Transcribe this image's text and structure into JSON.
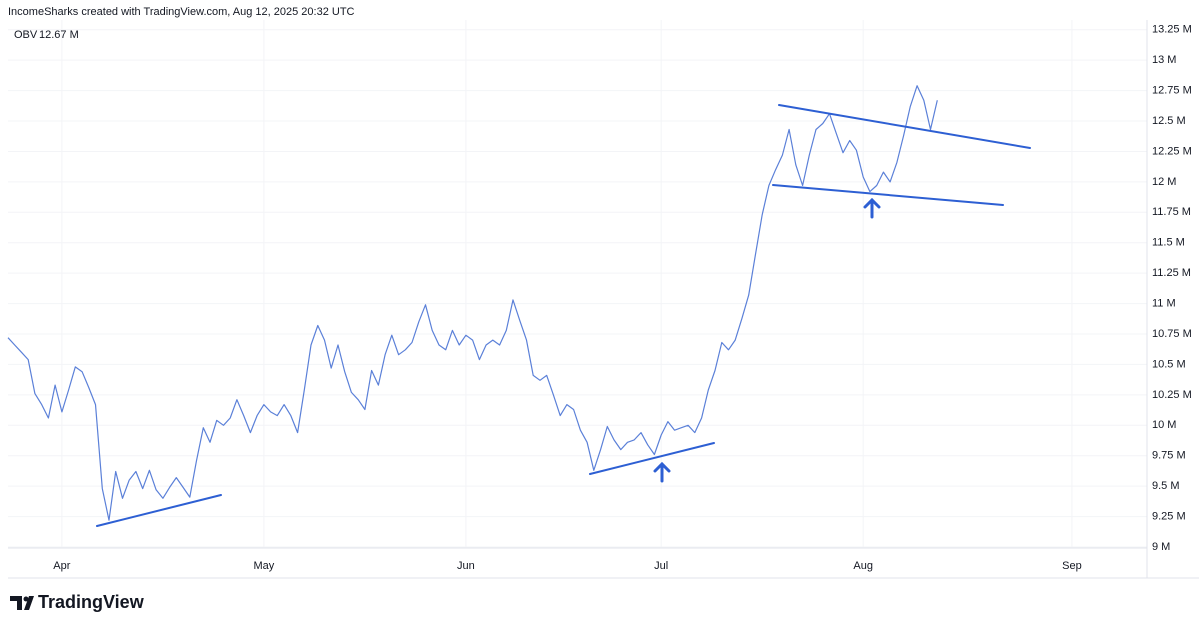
{
  "chart_data": {
    "type": "line",
    "title": "IncomeSharks created with TradingView.com, Aug 12, 2025 20:32 UTC",
    "watermark": "TradingView",
    "last_value_label": "12.67 M",
    "categories": [
      null,
      null,
      null,
      null,
      null,
      null,
      null,
      null,
      "Apr",
      null,
      null,
      null,
      null,
      null,
      null,
      null,
      null,
      null,
      null,
      null,
      null,
      null,
      null,
      null,
      null,
      null,
      null,
      null,
      null,
      null,
      null,
      null,
      null,
      null,
      null,
      null,
      null,
      null,
      "May",
      null,
      null,
      null,
      null,
      null,
      null,
      null,
      null,
      null,
      null,
      null,
      null,
      null,
      null,
      null,
      null,
      null,
      null,
      null,
      null,
      null,
      null,
      null,
      null,
      null,
      null,
      null,
      null,
      null,
      "Jun",
      null,
      null,
      null,
      null,
      null,
      null,
      null,
      null,
      null,
      null,
      null,
      null,
      null,
      null,
      null,
      null,
      null,
      null,
      null,
      null,
      null,
      null,
      null,
      null,
      null,
      null,
      null,
      null,
      "Jul",
      null,
      null,
      null,
      null,
      null,
      null,
      null,
      null,
      null,
      null,
      null,
      null,
      null,
      null,
      null,
      null,
      null,
      null,
      null,
      null,
      null,
      null,
      null,
      null,
      null,
      null,
      null,
      null,
      null,
      "Aug",
      null,
      null,
      null,
      null,
      null,
      null,
      null,
      null,
      null,
      null,
      null,
      null,
      null,
      null,
      null,
      null,
      null,
      null,
      null,
      null,
      null,
      null,
      null,
      null,
      null,
      null,
      null,
      null,
      null,
      null,
      "Sep",
      null
    ],
    "series": [
      {
        "name": "OBV",
        "color": "#5b80d8",
        "values": [
          10.72,
          10.66,
          10.6,
          10.54,
          10.26,
          10.17,
          10.06,
          10.33,
          10.11,
          10.29,
          10.48,
          10.44,
          10.31,
          10.17,
          9.48,
          9.22,
          9.62,
          9.4,
          9.55,
          9.62,
          9.48,
          9.63,
          9.47,
          9.4,
          9.49,
          9.57,
          9.49,
          9.41,
          9.71,
          9.98,
          9.86,
          10.04,
          10.0,
          10.06,
          10.21,
          10.08,
          9.94,
          10.08,
          10.17,
          10.11,
          10.08,
          10.17,
          10.08,
          9.94,
          10.29,
          10.66,
          10.82,
          10.7,
          10.47,
          10.66,
          10.44,
          10.27,
          10.21,
          10.13,
          10.45,
          10.33,
          10.58,
          10.74,
          10.58,
          10.62,
          10.68,
          10.85,
          10.99,
          10.78,
          10.66,
          10.62,
          10.78,
          10.66,
          10.74,
          10.7,
          10.54,
          10.66,
          10.7,
          10.66,
          10.78,
          11.03,
          10.86,
          10.7,
          10.41,
          10.37,
          10.41,
          10.25,
          10.08,
          10.17,
          10.13,
          9.96,
          9.86,
          9.63,
          9.8,
          9.99,
          9.88,
          9.8,
          9.86,
          9.88,
          9.94,
          9.84,
          9.76,
          9.92,
          10.03,
          9.96,
          9.98,
          10.0,
          9.94,
          10.06,
          10.29,
          10.45,
          10.68,
          10.62,
          10.7,
          10.88,
          11.07,
          11.4,
          11.73,
          11.97,
          12.1,
          12.22,
          12.43,
          12.14,
          11.97,
          12.22,
          12.43,
          12.48,
          12.56,
          12.4,
          12.24,
          12.34,
          12.26,
          12.04,
          11.92,
          11.97,
          12.08,
          12.0,
          12.16,
          12.38,
          12.62,
          12.79,
          12.67,
          12.43,
          12.67,
          null,
          null,
          null,
          null,
          null,
          null,
          null,
          null,
          null,
          null,
          null,
          null,
          null,
          null,
          null,
          null,
          null,
          null,
          null,
          null,
          null
        ]
      }
    ],
    "ylim": [
      9,
      13.33
    ],
    "yticks": [
      {
        "value": 9,
        "label": "9 M"
      },
      {
        "value": 9.25,
        "label": "9.25 M"
      },
      {
        "value": 9.5,
        "label": "9.5 M"
      },
      {
        "value": 9.75,
        "label": "9.75 M"
      },
      {
        "value": 10,
        "label": "10 M"
      },
      {
        "value": 10.25,
        "label": "10.25 M"
      },
      {
        "value": 10.5,
        "label": "10.5 M"
      },
      {
        "value": 10.75,
        "label": "10.75 M"
      },
      {
        "value": 11,
        "label": "11 M"
      },
      {
        "value": 11.25,
        "label": "11.25 M"
      },
      {
        "value": 11.5,
        "label": "11.5 M"
      },
      {
        "value": 11.75,
        "label": "11.75 M"
      },
      {
        "value": 12,
        "label": "12 M"
      },
      {
        "value": 12.25,
        "label": "12.25 M"
      },
      {
        "value": 12.5,
        "label": "12.5 M"
      },
      {
        "value": 12.75,
        "label": "12.75 M"
      },
      {
        "value": 13,
        "label": "13 M"
      },
      {
        "value": 13.25,
        "label": "13.25 M"
      }
    ],
    "grid": true
  }
}
